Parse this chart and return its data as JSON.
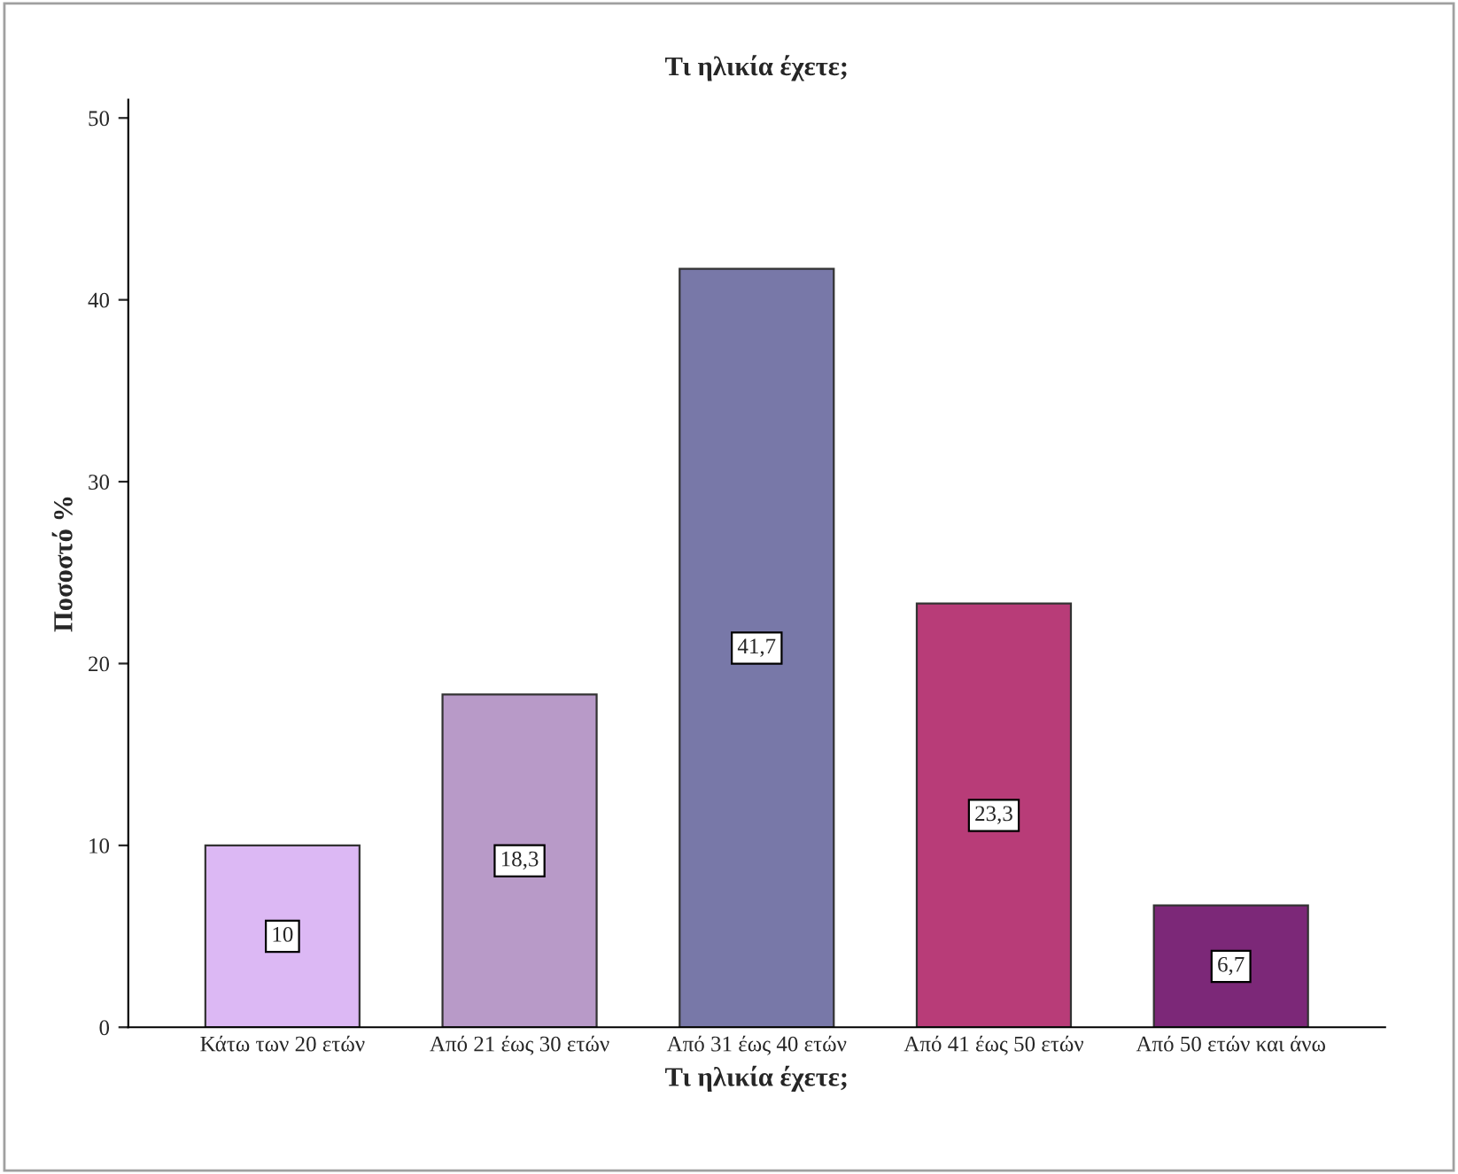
{
  "chart_data": {
    "type": "bar",
    "title": "Τι ηλικία έχετε;",
    "xlabel": "Τι ηλικία έχετε;",
    "ylabel": "Ποσοστό %",
    "categories": [
      "Κάτω των 20 ετών",
      "Από 21 έως 30 ετών",
      "Από 31 έως 40 ετών",
      "Από 41 έως 50 ετών",
      "Από 50 ετών και άνω"
    ],
    "values": [
      10,
      18.3,
      41.7,
      23.3,
      6.7
    ],
    "value_labels": [
      "10",
      "18,3",
      "41,7",
      "23,3",
      "6,7"
    ],
    "colors": [
      "#dcb8f4",
      "#b89ac8",
      "#7878a8",
      "#b83c78",
      "#7c2878"
    ],
    "ylim": [
      0,
      51
    ],
    "yticks": [
      0,
      10,
      20,
      30,
      40,
      50
    ],
    "grid": false,
    "legend": false
  }
}
